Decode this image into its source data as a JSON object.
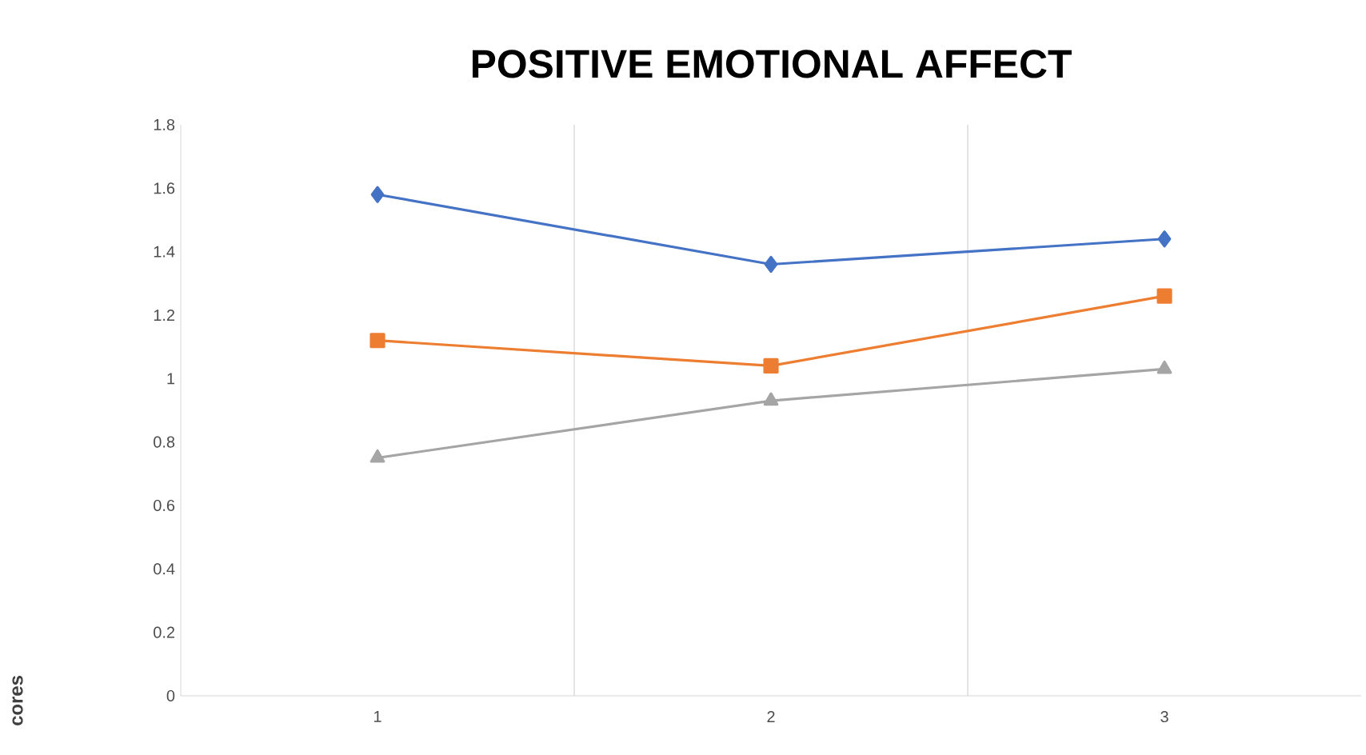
{
  "chart_data": {
    "type": "line",
    "title": "POSITIVE EMOTIONAL AFFECT",
    "annotations": [
      "cores"
    ],
    "categories": [
      "1",
      "2",
      "3"
    ],
    "series": [
      {
        "color": "#4472c4",
        "marker": "diamond",
        "values": [
          1.58,
          1.36,
          1.44
        ]
      },
      {
        "color": "#ed7d31",
        "marker": "square",
        "values": [
          1.12,
          1.04,
          1.26
        ]
      },
      {
        "color": "#a5a5a5",
        "marker": "triangle",
        "values": [
          0.75,
          0.93,
          1.03
        ]
      }
    ],
    "ylim": [
      0,
      1.8
    ],
    "yticks": [
      0,
      0.2,
      0.4,
      0.6,
      0.8,
      1,
      1.2,
      1.4,
      1.6,
      1.8
    ],
    "grid": "x",
    "legend": false
  }
}
